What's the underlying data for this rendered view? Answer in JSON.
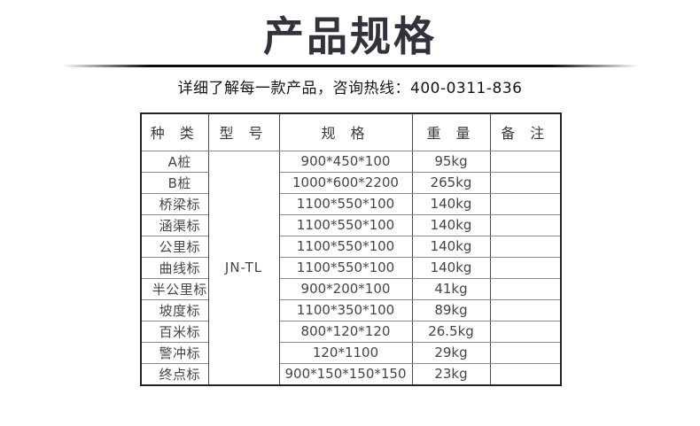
{
  "page": {
    "title": "产品规格",
    "subtitle": "详细了解每一款产品，咨询热线：400-0311-836",
    "hotline": "400-0311-836"
  },
  "table": {
    "headers": [
      "种 类",
      "型 号",
      "规 格",
      "重 量",
      "备 注"
    ],
    "model": "JN-TL",
    "rows": [
      {
        "type": "A桩",
        "spec": "900*450*100",
        "weight": "95kg",
        "note": ""
      },
      {
        "type": "B桩",
        "spec": "1000*600*2200",
        "weight": "265kg",
        "note": ""
      },
      {
        "type": "桥梁标",
        "spec": "1100*550*100",
        "weight": "140kg",
        "note": ""
      },
      {
        "type": "涵渠标",
        "spec": "1100*550*100",
        "weight": "140kg",
        "note": ""
      },
      {
        "type": "公里标",
        "spec": "1100*550*100",
        "weight": "140kg",
        "note": ""
      },
      {
        "type": "曲线标",
        "spec": "1100*550*100",
        "weight": "140kg",
        "note": ""
      },
      {
        "type": "半公里标",
        "spec": "900*200*100",
        "weight": "41kg",
        "note": ""
      },
      {
        "type": "坡度标",
        "spec": "1100*350*100",
        "weight": "89kg",
        "note": ""
      },
      {
        "type": "百米标",
        "spec": "800*120*120",
        "weight": "26.5kg",
        "note": ""
      },
      {
        "type": "警冲标",
        "spec": "120*1100",
        "weight": "29kg",
        "note": ""
      },
      {
        "type": "终点标",
        "spec": "900*150*150*150",
        "weight": "23kg",
        "note": ""
      }
    ]
  },
  "colors": {
    "title": "#32323c",
    "body_text": "#454549",
    "outer_border": "#222226",
    "grid_horizontal": "#8a8a8a",
    "grid_vertical": "#4a4a4e",
    "divider": "#0b0b0b",
    "background": "#ffffff"
  }
}
